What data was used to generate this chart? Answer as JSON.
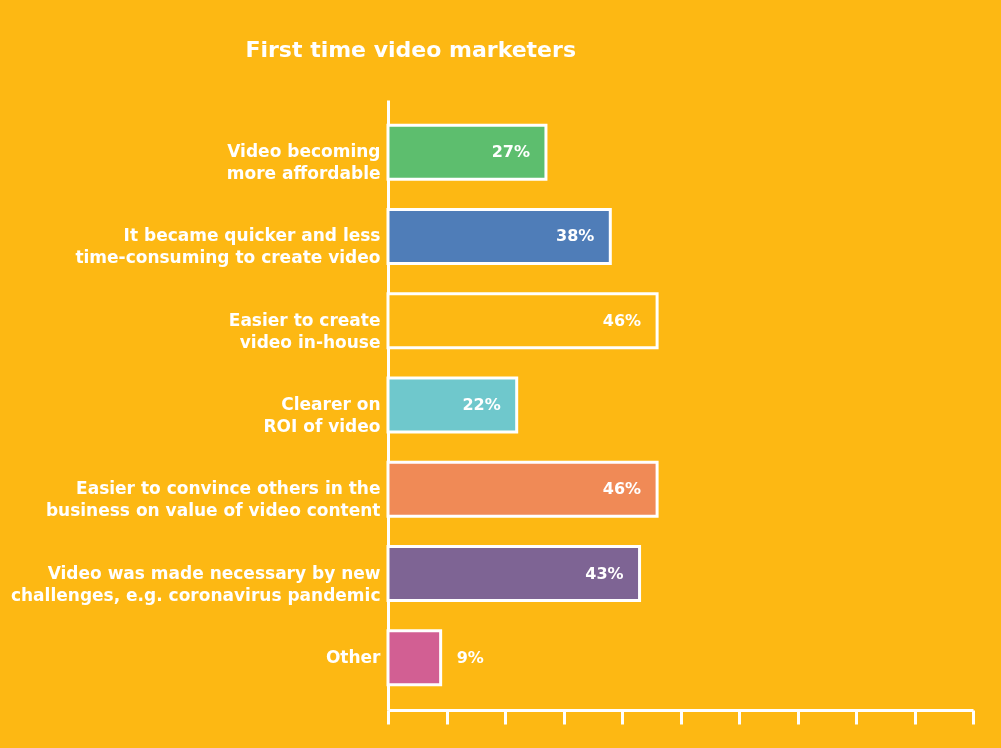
{
  "chart_data": {
    "type": "bar",
    "orientation": "horizontal",
    "title": "First time video marketers",
    "categories": [
      "Video becoming more affordable",
      "It became quicker and less time-consuming to create video",
      "Easier to create video in-house",
      "Clearer on ROI of video",
      "Easier to convince others in the business on value of video content",
      "Video was made necessary by new challenges, e.g. coronavirus pandemic",
      "Other"
    ],
    "values": [
      27,
      38,
      46,
      22,
      46,
      43,
      9
    ],
    "colors": [
      "#5dbe6e",
      "#4f7db8",
      "#fdb813",
      "#6fc8cc",
      "#f08a56",
      "#7e6494",
      "#d25f93"
    ],
    "value_labels": [
      "27%",
      "38%",
      "46%",
      "22%",
      "46%",
      "43%",
      "9%"
    ],
    "xlim": [
      0,
      100
    ],
    "xticks": [
      {
        "value": 0,
        "label": null
      },
      {
        "value": 10,
        "label": null
      },
      {
        "value": 20,
        "label": null
      },
      {
        "value": 30,
        "label": null
      },
      {
        "value": 40,
        "label": null
      },
      {
        "value": 50,
        "label": null
      },
      {
        "value": 60,
        "label": null
      },
      {
        "value": 70,
        "label": null
      },
      {
        "value": 80,
        "label": null
      },
      {
        "value": 90,
        "label": null
      },
      {
        "value": 100,
        "label": null
      }
    ],
    "tick_labels": "y",
    "grid": false
  }
}
